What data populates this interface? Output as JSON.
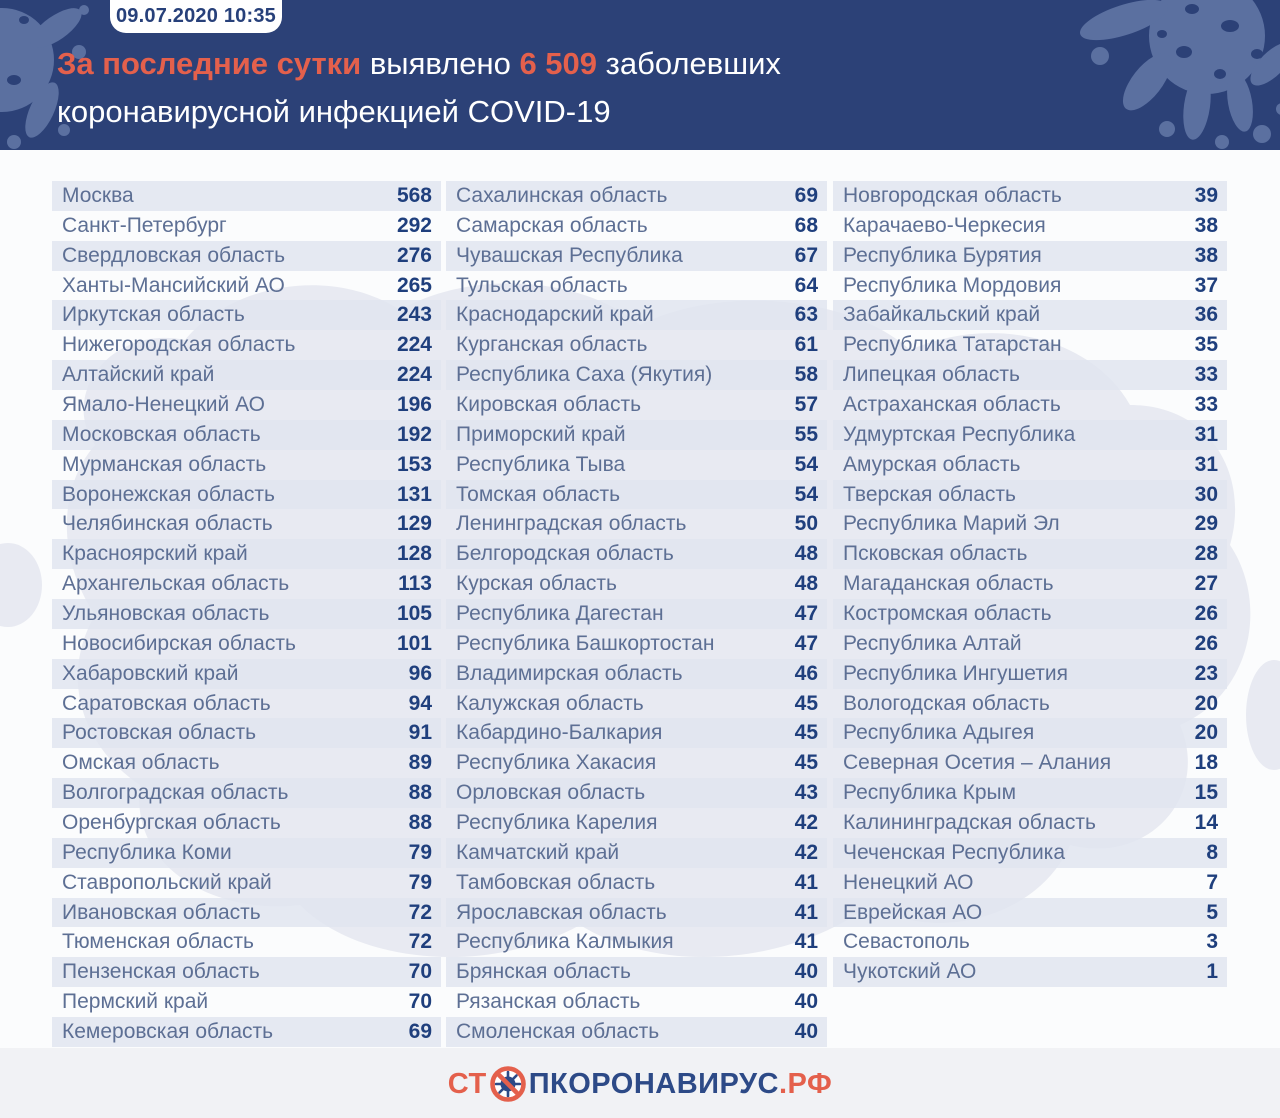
{
  "header": {
    "timestamp": "09.07.2020 10:35",
    "title": {
      "accent1": "За последние сутки",
      "plain1": " выявлено ",
      "accent2": "6 509",
      "plain2": " заболевших",
      "line2": "коронавирусной инфекцией COVID-19"
    }
  },
  "footer": {
    "logo": {
      "prefix": "СТ",
      "icon": "no-virus-icon",
      "main": "ПКОРОНАВИРУС",
      "suffix": ".РФ"
    }
  },
  "colors": {
    "header_bg": "#2c4177",
    "accent_orange": "#e4604c",
    "splash_blue": "#5f74a4",
    "stripe": "#e0e5f0",
    "region_label": "#5d6f94",
    "value_navy": "#1f3f7d",
    "logo_navy": "#2d4a87",
    "map_watermark": "#dfe3ec"
  },
  "chart_data": {
    "type": "table",
    "title": "За последние сутки выявлено 6 509 заболевших коронавирусной инфекцией COVID-19",
    "timestamp": "09.07.2020 10:35",
    "total_new_cases": "6 509",
    "column_groups": [
      [
        [
          "Москва",
          568
        ],
        [
          "Санкт-Петербург",
          292
        ],
        [
          "Свердловская область",
          276
        ],
        [
          "Ханты-Мансийский АО",
          265
        ],
        [
          "Иркутская область",
          243
        ],
        [
          "Нижегородская область",
          224
        ],
        [
          "Алтайский край",
          224
        ],
        [
          "Ямало-Ненецкий АО",
          196
        ],
        [
          "Московская область",
          192
        ],
        [
          "Мурманская область",
          153
        ],
        [
          "Воронежская область",
          131
        ],
        [
          "Челябинская область",
          129
        ],
        [
          "Красноярский край",
          128
        ],
        [
          "Архангельская область",
          113
        ],
        [
          "Ульяновская область",
          105
        ],
        [
          "Новосибирская область",
          101
        ],
        [
          "Хабаровский край",
          96
        ],
        [
          "Саратовская область",
          94
        ],
        [
          "Ростовская область",
          91
        ],
        [
          "Омская область",
          89
        ],
        [
          "Волгоградская область",
          88
        ],
        [
          "Оренбургская область",
          88
        ],
        [
          "Республика Коми",
          79
        ],
        [
          "Ставропольский край",
          79
        ],
        [
          "Ивановская область",
          72
        ],
        [
          "Тюменская область",
          72
        ],
        [
          "Пензенская область",
          70
        ],
        [
          "Пермский край",
          70
        ],
        [
          "Кемеровская область",
          69
        ]
      ],
      [
        [
          "Сахалинская область",
          69
        ],
        [
          "Самарская область",
          68
        ],
        [
          "Чувашская Республика",
          67
        ],
        [
          "Тульская область",
          64
        ],
        [
          "Краснодарский край",
          63
        ],
        [
          "Курганская область",
          61
        ],
        [
          "Республика Саха (Якутия)",
          58
        ],
        [
          "Кировская область",
          57
        ],
        [
          "Приморский край",
          55
        ],
        [
          "Республика Тыва",
          54
        ],
        [
          "Томская область",
          54
        ],
        [
          "Ленинградская область",
          50
        ],
        [
          "Белгородская область",
          48
        ],
        [
          "Курская область",
          48
        ],
        [
          "Республика Дагестан",
          47
        ],
        [
          "Республика Башкортостан",
          47
        ],
        [
          "Владимирская область",
          46
        ],
        [
          "Калужская область",
          45
        ],
        [
          "Кабардино-Балкария",
          45
        ],
        [
          "Республика Хакасия",
          45
        ],
        [
          "Орловская область",
          43
        ],
        [
          "Республика Карелия",
          42
        ],
        [
          "Камчатский край",
          42
        ],
        [
          "Тамбовская область",
          41
        ],
        [
          "Ярославская область",
          41
        ],
        [
          "Республика Калмыкия",
          41
        ],
        [
          "Брянская область",
          40
        ],
        [
          "Рязанская область",
          40
        ],
        [
          "Смоленская область",
          40
        ]
      ],
      [
        [
          "Новгородская область",
          39
        ],
        [
          "Карачаево-Черкесия",
          38
        ],
        [
          "Республика Бурятия",
          38
        ],
        [
          "Республика Мордовия",
          37
        ],
        [
          "Забайкальский край",
          36
        ],
        [
          "Республика Татарстан",
          35
        ],
        [
          "Липецкая область",
          33
        ],
        [
          "Астраханская область",
          33
        ],
        [
          "Удмуртская Республика",
          31
        ],
        [
          "Амурская область",
          31
        ],
        [
          "Тверская область",
          30
        ],
        [
          "Республика Марий Эл",
          29
        ],
        [
          "Псковская область",
          28
        ],
        [
          "Магаданская область",
          27
        ],
        [
          "Костромская область",
          26
        ],
        [
          "Республика Алтай",
          26
        ],
        [
          "Республика Ингушетия",
          23
        ],
        [
          "Вологодская область",
          20
        ],
        [
          "Республика Адыгея",
          20
        ],
        [
          "Северная Осетия – Алания",
          18
        ],
        [
          "Республика Крым",
          15
        ],
        [
          "Калининградская область",
          14
        ],
        [
          "Чеченская Республика",
          8
        ],
        [
          "Ненецкий АО",
          7
        ],
        [
          "Еврейская АО",
          5
        ],
        [
          "Севастополь",
          3
        ],
        [
          "Чукотский АО",
          1
        ]
      ]
    ]
  }
}
